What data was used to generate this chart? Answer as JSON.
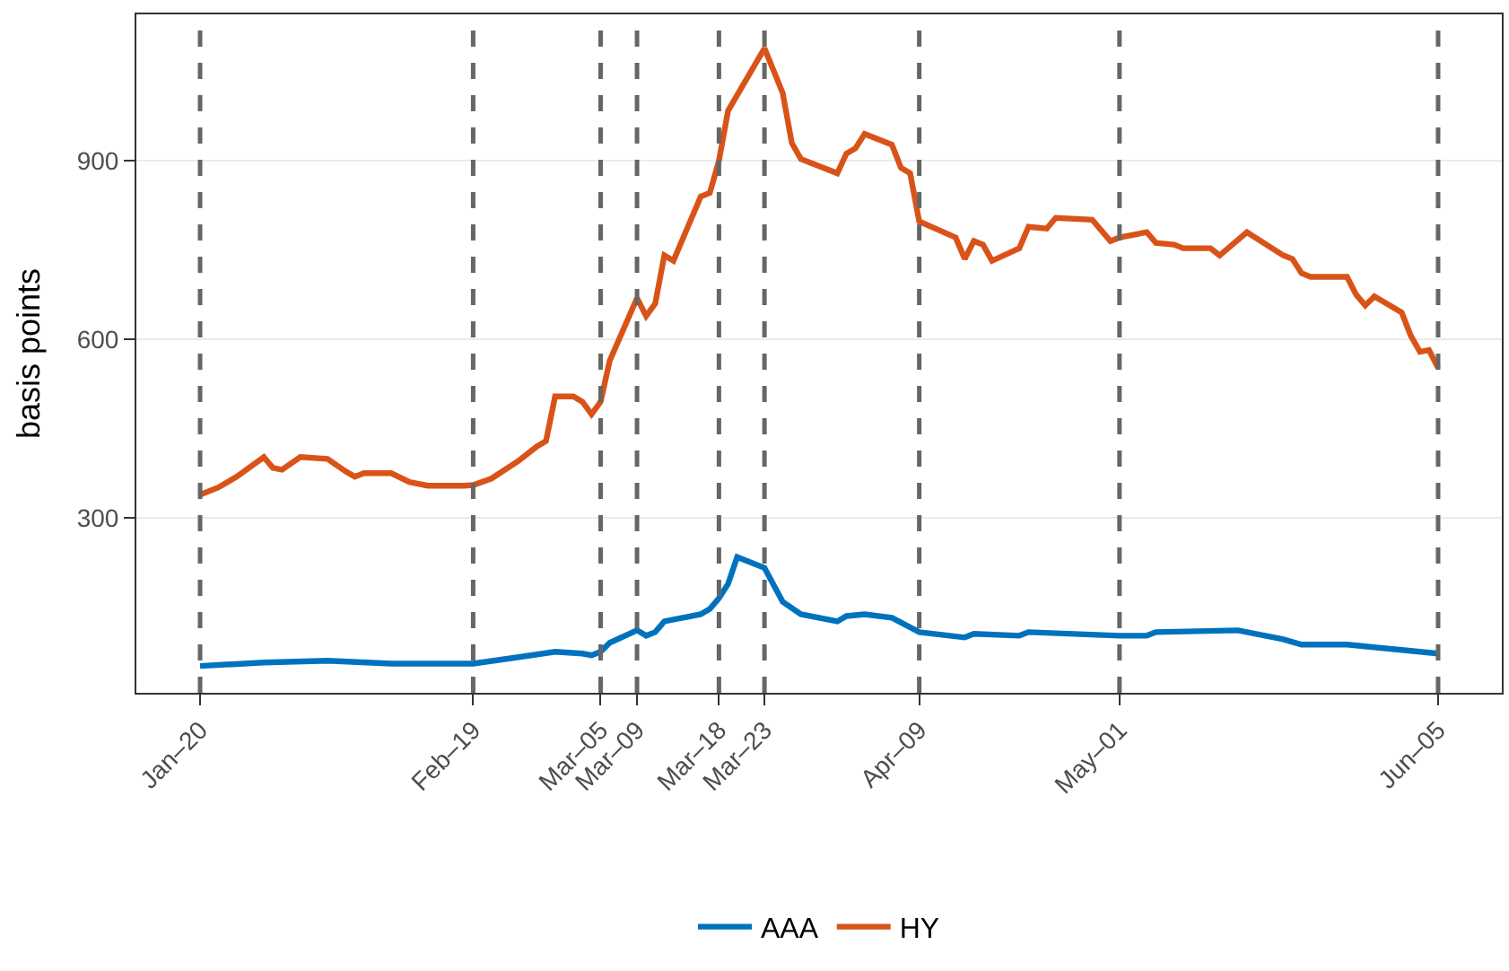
{
  "chart_data": {
    "type": "line",
    "ylabel": "basis points",
    "xlim": [
      "--01-13",
      "--06-12"
    ],
    "ylim": [
      6,
      1146
    ],
    "yticks": [
      300,
      600,
      900
    ],
    "xticks": [
      {
        "value": "--01-20",
        "label": "Jan–20"
      },
      {
        "value": "--02-19",
        "label": "Feb–19"
      },
      {
        "value": "--03-05",
        "label": "Mar–05"
      },
      {
        "value": "--03-09",
        "label": "Mar–09"
      },
      {
        "value": "--03-18",
        "label": "Mar–18"
      },
      {
        "value": "--03-23",
        "label": "Mar–23"
      },
      {
        "value": "--04-09",
        "label": "Apr–09"
      },
      {
        "value": "--05-01",
        "label": "May–01"
      },
      {
        "value": "--06-05",
        "label": "Jun–05"
      }
    ],
    "ref_lines": [
      {
        "axis": "x",
        "value": "--01-20",
        "color": "#666666",
        "line_style": "dashed"
      },
      {
        "axis": "x",
        "value": "--02-19",
        "color": "#666666",
        "line_style": "dashed"
      },
      {
        "axis": "x",
        "value": "--03-05",
        "color": "#666666",
        "line_style": "dashed"
      },
      {
        "axis": "x",
        "value": "--03-09",
        "color": "#666666",
        "line_style": "dashed"
      },
      {
        "axis": "x",
        "value": "--03-18",
        "color": "#666666",
        "line_style": "dashed"
      },
      {
        "axis": "x",
        "value": "--03-23",
        "color": "#666666",
        "line_style": "dashed"
      },
      {
        "axis": "x",
        "value": "--04-09",
        "color": "#666666",
        "line_style": "dashed"
      },
      {
        "axis": "x",
        "value": "--05-01",
        "color": "#666666",
        "line_style": "dashed"
      },
      {
        "axis": "x",
        "value": "--06-05",
        "color": "#666666",
        "line_style": "dashed"
      }
    ],
    "grid": "y",
    "legend": "bottom",
    "line_style": "solid",
    "marker": "none",
    "series": [
      {
        "name": "AAA",
        "color": "#0072bd",
        "x": [
          "--01-20",
          "--01-27",
          "--02-03",
          "--02-10",
          "--02-19",
          "--02-24",
          "--02-28",
          "--03-03",
          "--03-04",
          "--03-05",
          "--03-06",
          "--03-09",
          "--03-10",
          "--03-11",
          "--03-12",
          "--03-16",
          "--03-17",
          "--03-18",
          "--03-19",
          "--03-20",
          "--03-23",
          "--03-25",
          "--03-27",
          "--03-31",
          "--04-01",
          "--04-03",
          "--04-06",
          "--04-09",
          "--04-14",
          "--04-15",
          "--04-20",
          "--04-21",
          "--05-01",
          "--05-04",
          "--05-05",
          "--05-14",
          "--05-19",
          "--05-21",
          "--05-26",
          "--05-28",
          "--06-01",
          "--06-05"
        ],
        "values": [
          51,
          57,
          60,
          55,
          55,
          66,
          75,
          72,
          69,
          75,
          90,
          111,
          102,
          108,
          126,
          138,
          147,
          165,
          189,
          234,
          216,
          159,
          138,
          126,
          135,
          138,
          132,
          108,
          99,
          105,
          102,
          108,
          102,
          102,
          108,
          111,
          96,
          87,
          87,
          84,
          78,
          72
        ]
      },
      {
        "name": "HY",
        "color": "#d95319",
        "x": [
          "--01-20",
          "--01-22",
          "--01-24",
          "--01-27",
          "--01-28",
          "--01-29",
          "--01-31",
          "--02-03",
          "--02-05",
          "--02-06",
          "--02-07",
          "--02-10",
          "--02-12",
          "--02-14",
          "--02-18",
          "--02-19",
          "--02-21",
          "--02-24",
          "--02-26",
          "--02-27",
          "--02-28",
          "--03-02",
          "--03-03",
          "--03-04",
          "--03-05",
          "--03-06",
          "--03-09",
          "--03-10",
          "--03-11",
          "--03-12",
          "--03-13",
          "--03-16",
          "--03-17",
          "--03-18",
          "--03-19",
          "--03-23",
          "--03-25",
          "--03-26",
          "--03-27",
          "--03-31",
          "--04-01",
          "--04-02",
          "--04-03",
          "--04-06",
          "--04-07",
          "--04-08",
          "--04-09",
          "--04-13",
          "--04-14",
          "--04-15",
          "--04-16",
          "--04-17",
          "--04-20",
          "--04-21",
          "--04-23",
          "--04-24",
          "--04-28",
          "--04-30",
          "--05-01",
          "--05-04",
          "--05-05",
          "--05-07",
          "--05-08",
          "--05-11",
          "--05-12",
          "--05-15",
          "--05-19",
          "--05-20",
          "--05-21",
          "--05-22",
          "--05-26",
          "--05-27",
          "--05-28",
          "--05-29",
          "--06-01",
          "--06-02",
          "--06-03",
          "--06-04",
          "--06-05"
        ],
        "values": [
          339,
          351,
          369,
          402,
          384,
          381,
          402,
          399,
          378,
          369,
          375,
          375,
          360,
          354,
          354,
          355,
          366,
          396,
          420,
          429,
          504,
          504,
          495,
          474,
          495,
          564,
          669,
          639,
          660,
          741,
          732,
          840,
          846,
          900,
          984,
          1089,
          1014,
          930,
          903,
          879,
          912,
          921,
          945,
          927,
          888,
          879,
          798,
          771,
          735,
          765,
          759,
          732,
          753,
          789,
          786,
          804,
          801,
          765,
          771,
          780,
          762,
          759,
          753,
          753,
          741,
          780,
          741,
          735,
          711,
          705,
          705,
          675,
          657,
          672,
          645,
          606,
          579,
          582,
          552
        ]
      }
    ]
  }
}
